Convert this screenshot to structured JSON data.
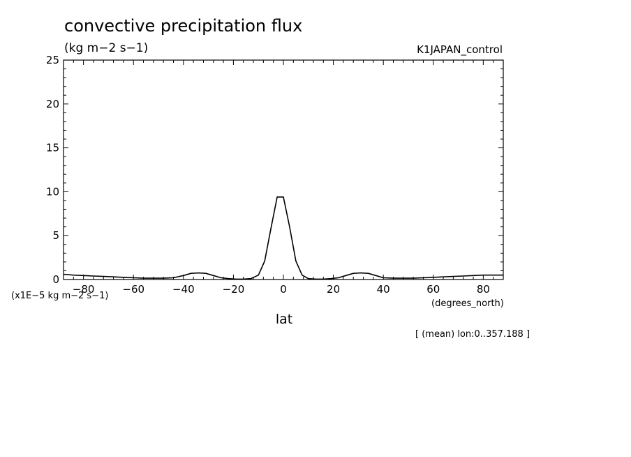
{
  "chart_data": {
    "type": "line",
    "title": "convective precipitation flux",
    "units": "(kg m−2 s−1)",
    "run_label": "K1JAPAN_control",
    "scale_note": "(x1E−5 kg m−2 s−1)",
    "xlabel": "lat",
    "xunits": "(degrees_north)",
    "footnote": "[ (mean) lon:0..357.188 ]",
    "xlim": [
      -88,
      88
    ],
    "ylim": [
      0,
      25
    ],
    "xticks": [
      -80,
      -60,
      -40,
      -20,
      0,
      20,
      40,
      60,
      80
    ],
    "xtick_labels": [
      "−80",
      "−60",
      "−40",
      "−20",
      "0",
      "20",
      "40",
      "60",
      "80"
    ],
    "yticks": [
      0,
      5,
      10,
      15,
      20,
      25
    ],
    "ytick_labels": [
      "0",
      "5",
      "10",
      "15",
      "20",
      "25"
    ],
    "grid": false,
    "series": [
      {
        "x": [
          -88,
          -84,
          -80,
          -76,
          -72,
          -68,
          -64,
          -60,
          -56,
          -52,
          -48,
          -44,
          -40,
          -37,
          -34,
          -31,
          -28,
          -25,
          -22,
          -19,
          -16,
          -13,
          -10,
          -7.5,
          -5,
          -2.5,
          0,
          2.5,
          5,
          7.5,
          10,
          13,
          16,
          19,
          22,
          25,
          28,
          31,
          34,
          37,
          40,
          44,
          48,
          52,
          56,
          60,
          64,
          68,
          72,
          76,
          80,
          84,
          88
        ],
        "y": [
          0.6,
          0.5,
          0.45,
          0.4,
          0.35,
          0.3,
          0.25,
          0.2,
          0.15,
          0.15,
          0.15,
          0.2,
          0.45,
          0.7,
          0.75,
          0.7,
          0.45,
          0.2,
          0.1,
          0.05,
          0.05,
          0.1,
          0.5,
          2.1,
          5.8,
          9.4,
          9.4,
          6.0,
          2.1,
          0.5,
          0.1,
          0.05,
          0.05,
          0.1,
          0.2,
          0.45,
          0.7,
          0.75,
          0.7,
          0.45,
          0.2,
          0.15,
          0.15,
          0.15,
          0.2,
          0.25,
          0.3,
          0.35,
          0.4,
          0.45,
          0.5,
          0.5,
          0.5
        ]
      }
    ]
  }
}
